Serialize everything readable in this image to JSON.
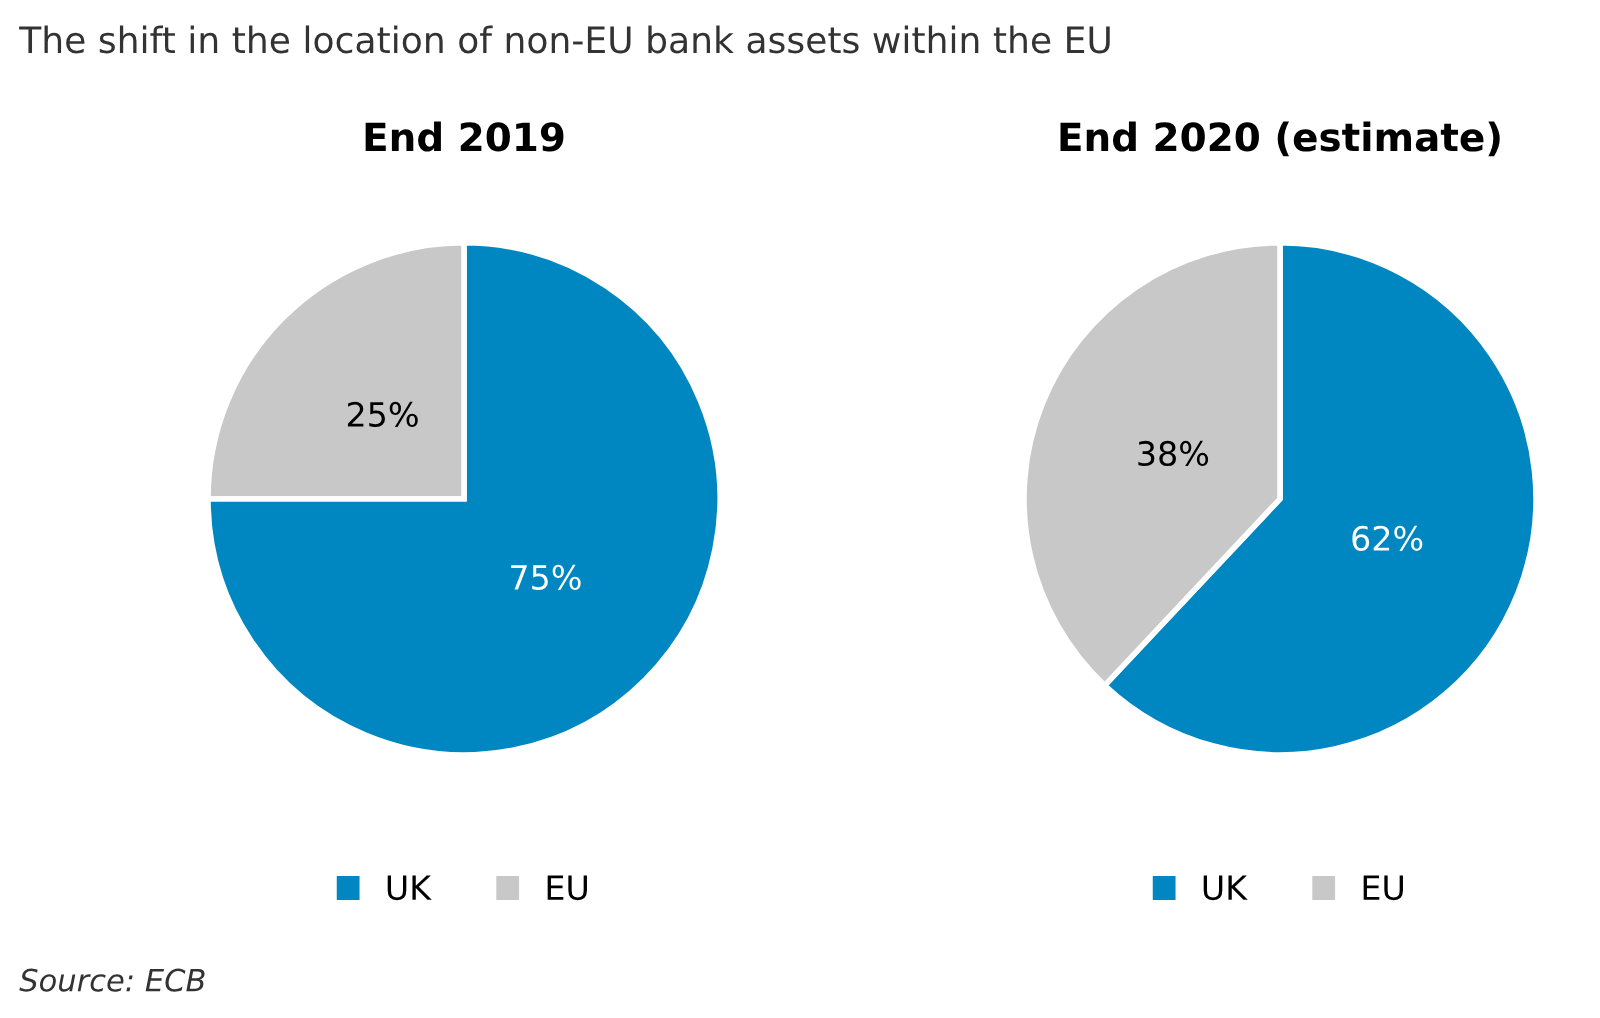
{
  "chart_data": [
    {
      "type": "pie",
      "title": "End 2019",
      "categories": [
        "UK",
        "EU"
      ],
      "values": [
        75,
        25
      ],
      "colors": [
        "#0087c1",
        "#c8c8c8"
      ],
      "value_labels": [
        "75%",
        "25%"
      ],
      "legend": "bottom",
      "annotations": [
        "The shift in the location of non-EU bank assets within the EU"
      ]
    },
    {
      "type": "pie",
      "title": "End 2020 (estimate)",
      "categories": [
        "UK",
        "EU"
      ],
      "values": [
        62,
        38
      ],
      "colors": [
        "#0087c1",
        "#c8c8c8"
      ],
      "value_labels": [
        "62%",
        "38%"
      ],
      "legend": "bottom",
      "annotations": [
        "Source: ECB"
      ]
    }
  ]
}
